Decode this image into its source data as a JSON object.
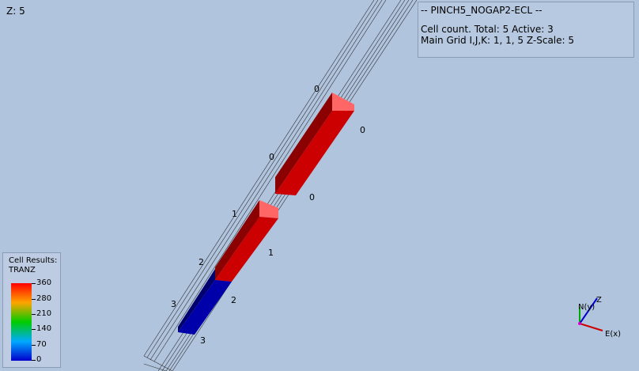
{
  "view": {
    "z_label": "Z: 5"
  },
  "info": {
    "title": "-- PINCH5_NOGAP2-ECL --",
    "cell_count_prefix": "Cell count. Total: ",
    "total": "5",
    "active_prefix": " Active: ",
    "active": "3",
    "grid_prefix": "Main Grid I,J,K: ",
    "grid": "1, 1, 5",
    "zscale_prefix": " Z-Scale: ",
    "zscale": "5"
  },
  "legend": {
    "title_line1": "Cell Results:",
    "title_line2": "TRANZ",
    "ticks": [
      "360",
      "280",
      "210",
      "140",
      "70",
      "0"
    ],
    "colors": {
      "max": "#ff0000",
      "high": "#ffa500",
      "mid": "#00cc00",
      "low": "#00aaff",
      "min": "#0000cc"
    }
  },
  "cells": [
    {
      "color": "#cc0000",
      "value": "0"
    },
    {
      "color": "#cc0000",
      "value": "1"
    },
    {
      "color": "#0000aa",
      "value": "2"
    }
  ],
  "k_labels": [
    "0",
    "0",
    "0",
    "0",
    "1",
    "1",
    "2",
    "2",
    "3",
    "3"
  ],
  "axes": {
    "z": "Z",
    "n": "N(y)",
    "e": "E(x)"
  }
}
